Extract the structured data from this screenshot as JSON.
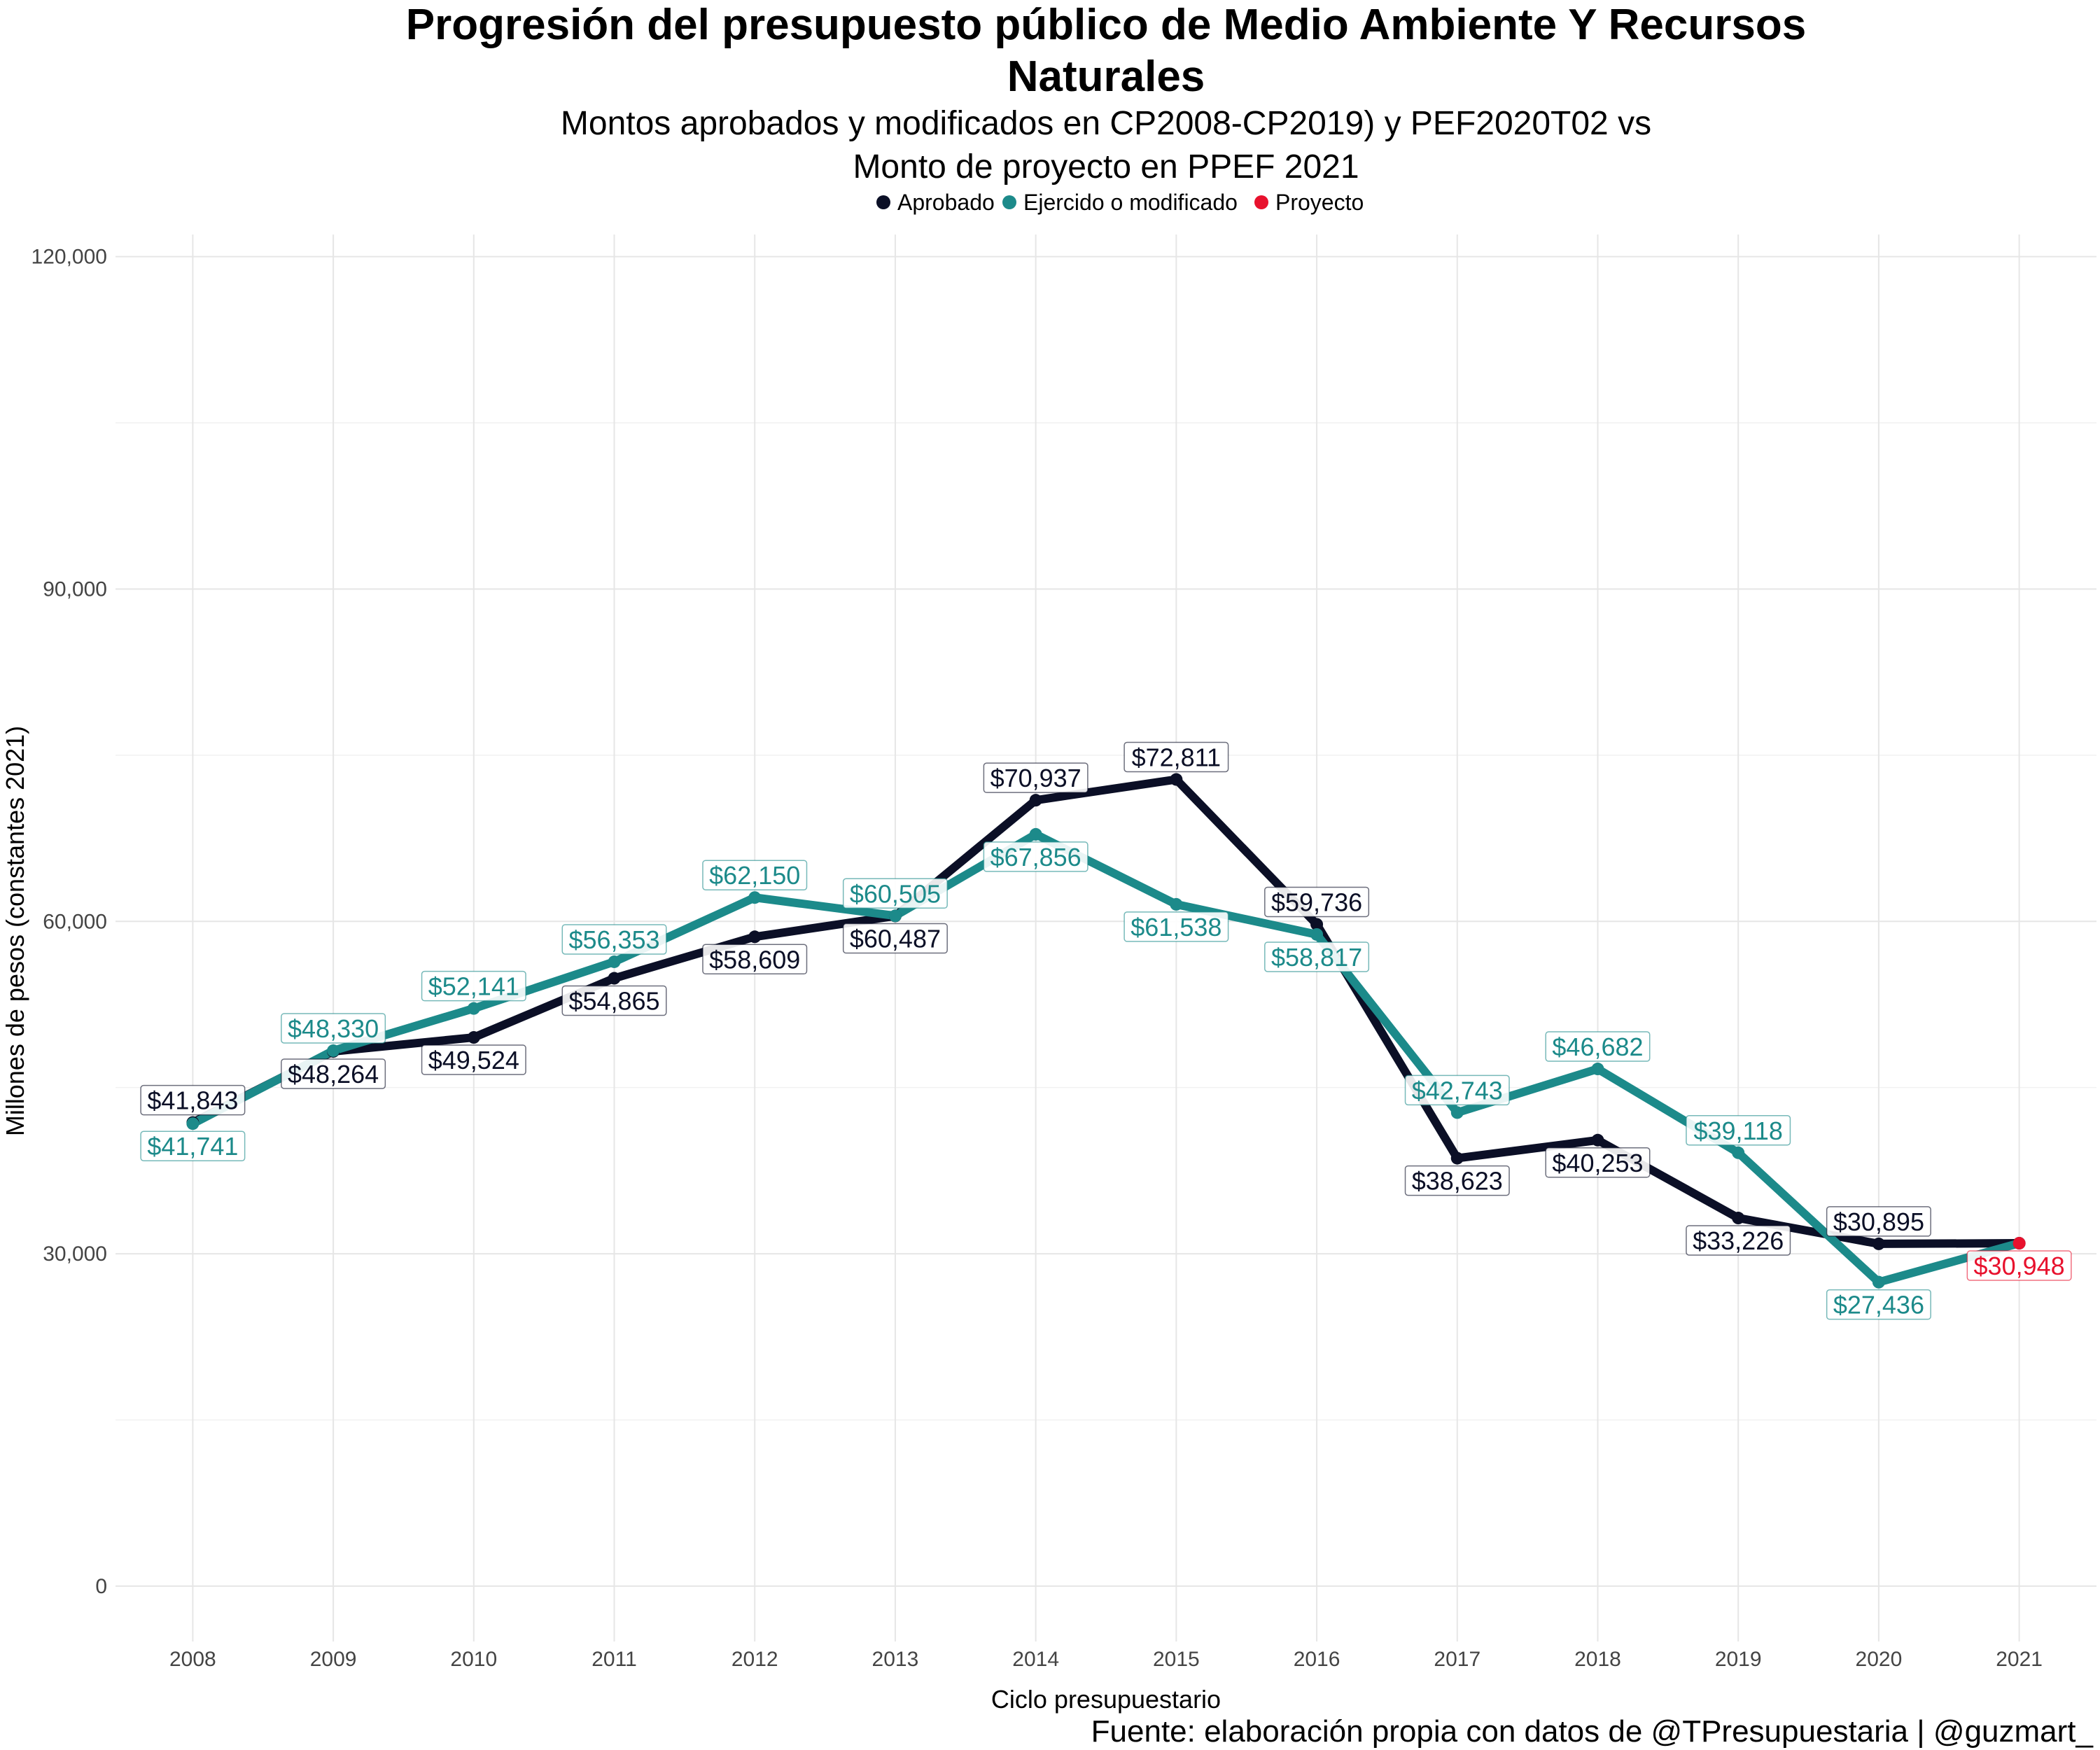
{
  "chart_data": {
    "type": "line",
    "title_lines": [
      "Progresión del presupuesto público de Medio Ambiente Y Recursos",
      "Naturales"
    ],
    "subtitle_lines": [
      "Montos aprobados y modificados en CP2008-CP2019) y PEF2020T02 vs",
      "Monto de proyecto en PPEF 2021"
    ],
    "xlabel": "Ciclo presupuestario",
    "ylabel": "Millones de pesos (constantes 2021)",
    "caption": "Fuente: elaboración propia con datos de @TPresupuestaria | @guzmart_",
    "x": [
      2008,
      2009,
      2010,
      2011,
      2012,
      2013,
      2014,
      2015,
      2016,
      2017,
      2018,
      2019,
      2020,
      2021
    ],
    "ylim": [
      -5000,
      122000
    ],
    "yticks": [
      0,
      30000,
      60000,
      90000,
      120000
    ],
    "ytick_labels": [
      "0",
      "30,000",
      "60,000",
      "90,000",
      "120,000"
    ],
    "legend_position": "top",
    "grid": true,
    "legend": [
      {
        "name": "Aprobado",
        "color": "#0b0f26"
      },
      {
        "name": "Ejercido o modificado",
        "color": "#1c8a8a"
      },
      {
        "name": "Proyecto",
        "color": "#e8112d"
      }
    ],
    "series": [
      {
        "name": "Aprobado",
        "color": "#0b0f26",
        "values": [
          41843,
          48264,
          49524,
          54865,
          58609,
          60487,
          70937,
          72811,
          59736,
          38623,
          40253,
          33226,
          30895,
          30948
        ],
        "labels": [
          "$41,843",
          "$48,264",
          "$49,524",
          "$54,865",
          "$58,609",
          "$60,487",
          "$70,937",
          "$72,811",
          "$59,736",
          "$38,623",
          "$40,253",
          "$33,226",
          "$30,895",
          null
        ]
      },
      {
        "name": "Ejercido o modificado",
        "color": "#1c8a8a",
        "values": [
          41741,
          48330,
          52141,
          56353,
          62150,
          60505,
          67856,
          61538,
          58817,
          42743,
          46682,
          39118,
          27436,
          30948
        ],
        "labels": [
          "$41,741",
          "$48,330",
          "$52,141",
          "$56,353",
          "$62,150",
          "$60,505",
          "$67,856",
          "$61,538",
          "$58,817",
          "$42,743",
          "$46,682",
          "$39,118",
          "$27,436",
          null
        ]
      },
      {
        "name": "Proyecto",
        "color": "#e8112d",
        "values": [
          null,
          null,
          null,
          null,
          null,
          null,
          null,
          null,
          null,
          null,
          null,
          null,
          null,
          30948
        ],
        "labels": [
          null,
          null,
          null,
          null,
          null,
          null,
          null,
          null,
          null,
          null,
          null,
          null,
          null,
          "$30,948"
        ]
      }
    ]
  }
}
